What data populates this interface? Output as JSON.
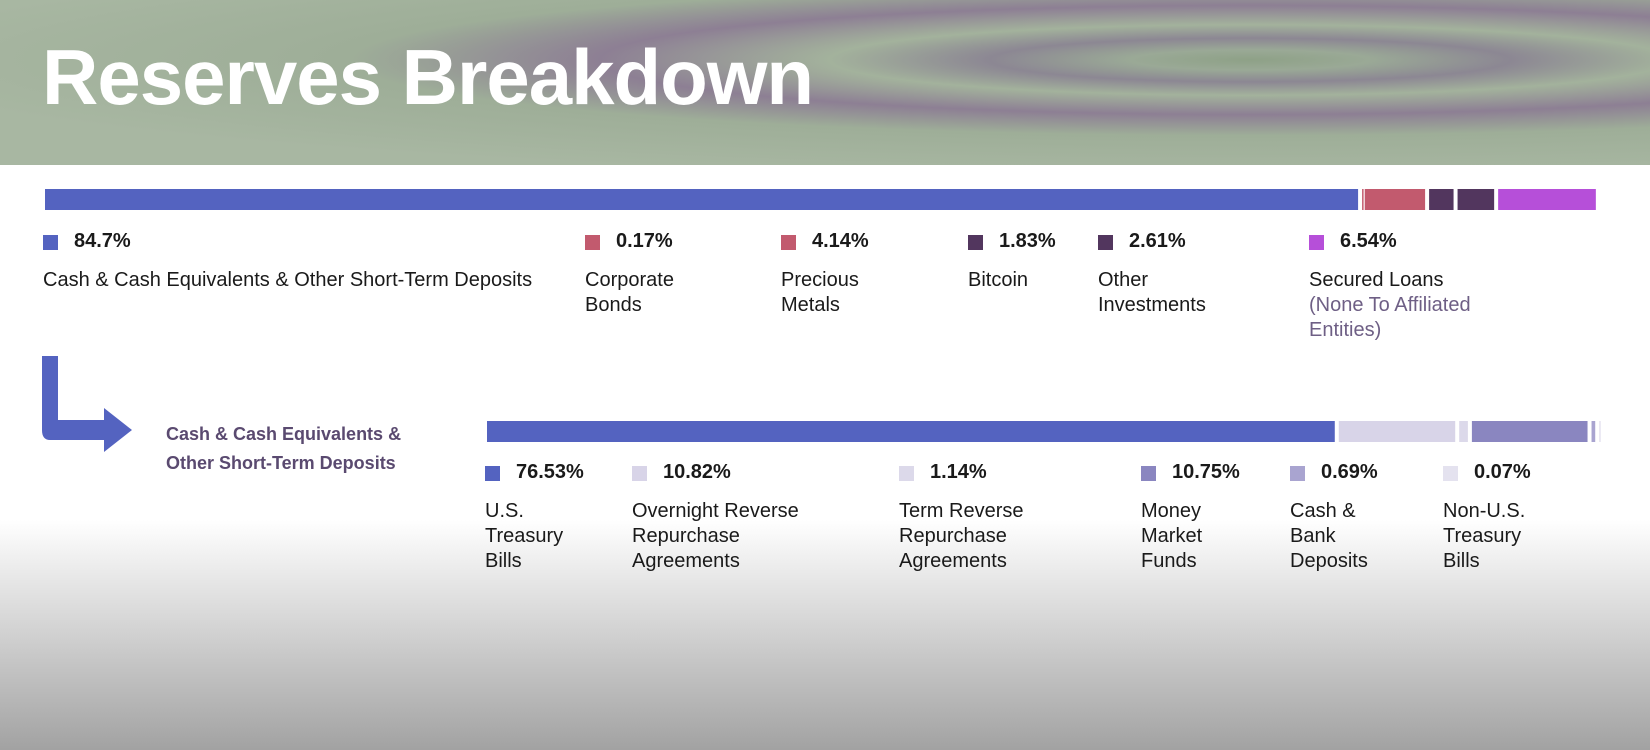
{
  "chart_data": [
    {
      "type": "stacked-bar",
      "title": "Reserves Breakdown",
      "xlim": [
        0,
        100
      ],
      "categories": [
        "Cash & Cash Equivalents & Other Short-Term Deposits",
        "Corporate Bonds",
        "Precious Metals",
        "Bitcoin",
        "Other Investments",
        "Secured Loans"
      ],
      "category_notes": [
        null,
        null,
        null,
        null,
        null,
        "(None To Affiliated Entities)"
      ],
      "values": [
        84.7,
        0.17,
        4.14,
        1.83,
        2.61,
        6.54
      ],
      "value_labels": [
        "84.7%",
        "0.17%",
        "4.14%",
        "1.83%",
        "2.61%",
        "6.54%"
      ],
      "colors": [
        "#5463c0",
        "#c25a6e",
        "#c25a6e",
        "#52365e",
        "#52365e",
        "#b64fd9"
      ]
    },
    {
      "type": "stacked-bar",
      "title": "Cash & Cash Equivalents & Other Short-Term Deposits",
      "xlim": [
        0,
        100
      ],
      "categories": [
        "U.S. Treasury Bills",
        "Overnight Reverse Repurchase Agreements",
        "Term Reverse Repurchase Agreements",
        "Money Market Funds",
        "Cash & Bank Deposits",
        "Non-U.S. Treasury Bills"
      ],
      "values": [
        76.53,
        10.82,
        1.14,
        10.75,
        0.69,
        0.07
      ],
      "value_labels": [
        "76.53%",
        "10.82%",
        "1.14%",
        "10.75%",
        "0.69%",
        "0.07%"
      ],
      "colors": [
        "#5463c0",
        "#d8d4e8",
        "#dcd9ea",
        "#8a86c0",
        "#a9a4d0",
        "#e4e2ef"
      ]
    }
  ]
}
